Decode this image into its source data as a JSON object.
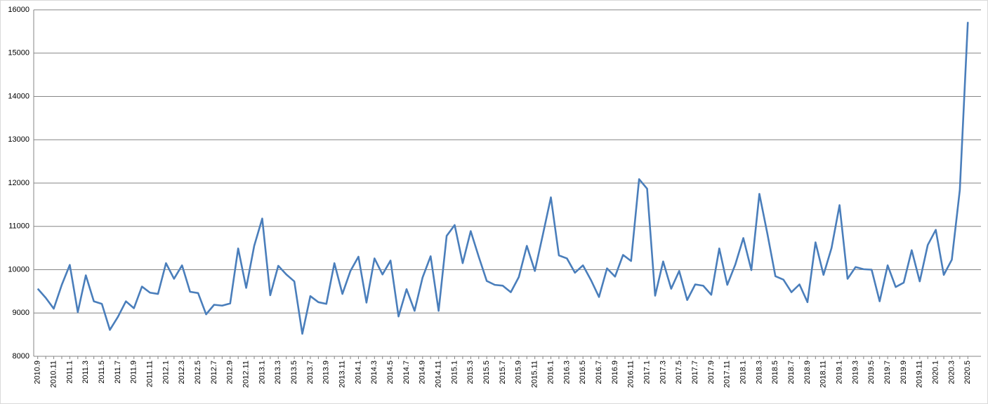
{
  "chart_data": {
    "type": "line",
    "categories": [
      "2010.9",
      null,
      "2010.11",
      null,
      "2011.1",
      null,
      "2011.3",
      null,
      "2011.5",
      null,
      "2011.7",
      null,
      "2011.9",
      null,
      "2011.11",
      null,
      "2012.1",
      null,
      "2012.3",
      null,
      "2012.5",
      null,
      "2012.7",
      null,
      "2012.9",
      null,
      "2012.11",
      null,
      "2013.1",
      null,
      "2013.3",
      null,
      "2013.5",
      null,
      "2013.7",
      null,
      "2013.9",
      null,
      "2013.11",
      null,
      "2014.1",
      null,
      "2014.3",
      null,
      "2014.5",
      null,
      "2014.7",
      null,
      "2014.9",
      null,
      "2014.11",
      null,
      "2015.1",
      null,
      "2015.3",
      null,
      "2015.5",
      null,
      "2015.7",
      null,
      "2015.9",
      null,
      "2015.11",
      null,
      "2016.1",
      null,
      "2016.3",
      null,
      "2016.5",
      null,
      "2016.7",
      null,
      "2016.9",
      null,
      "2016.11",
      null,
      "2017.1",
      null,
      "2017.3",
      null,
      "2017.5",
      null,
      "2017.7",
      null,
      "2017.9",
      null,
      "2017.11",
      null,
      "2018.1",
      null,
      "2018.3",
      null,
      "2018.5",
      null,
      "2018.7",
      null,
      "2018.9",
      null,
      "2018.11",
      null,
      "2019.1",
      null,
      "2019.3",
      null,
      "2019.5",
      null,
      "2019.7",
      null,
      "2019.9",
      null,
      "2019.11",
      null,
      "2020.1",
      null,
      "2020.3",
      null,
      "2020.5"
    ],
    "values": [
      9560,
      9350,
      9100,
      9650,
      10110,
      9020,
      9870,
      9270,
      9210,
      8610,
      8910,
      9270,
      9110,
      9610,
      9470,
      9440,
      10150,
      9790,
      10100,
      9490,
      9460,
      8970,
      9190,
      9170,
      9220,
      10490,
      9580,
      10550,
      11180,
      9410,
      10090,
      9890,
      9730,
      8520,
      9390,
      9250,
      9210,
      10150,
      9440,
      9970,
      10300,
      9240,
      10260,
      9890,
      10210,
      8920,
      9550,
      9050,
      9820,
      10310,
      9050,
      10780,
      11030,
      10150,
      10890,
      10300,
      9740,
      9650,
      9630,
      9480,
      9830,
      10550,
      9970,
      10810,
      11670,
      10330,
      10260,
      9930,
      10100,
      9760,
      9370,
      10030,
      9840,
      10340,
      10200,
      12090,
      11870,
      9400,
      10190,
      9560,
      9970,
      9300,
      9660,
      9630,
      9420,
      10490,
      9650,
      10120,
      10730,
      9990,
      11750,
      10830,
      9850,
      9770,
      9480,
      9660,
      9250,
      10630,
      9880,
      10500,
      11490,
      9790,
      10060,
      10010,
      10000,
      9270,
      10100,
      9600,
      9700,
      10450,
      9730,
      10570,
      10920,
      9880,
      10230,
      11840,
      15720
    ],
    "color": "#4a7ebb",
    "ylim": [
      8000,
      16000
    ],
    "yticks": [
      8000,
      9000,
      10000,
      11000,
      12000,
      13000,
      14000,
      15000,
      16000
    ],
    "grid": true
  }
}
